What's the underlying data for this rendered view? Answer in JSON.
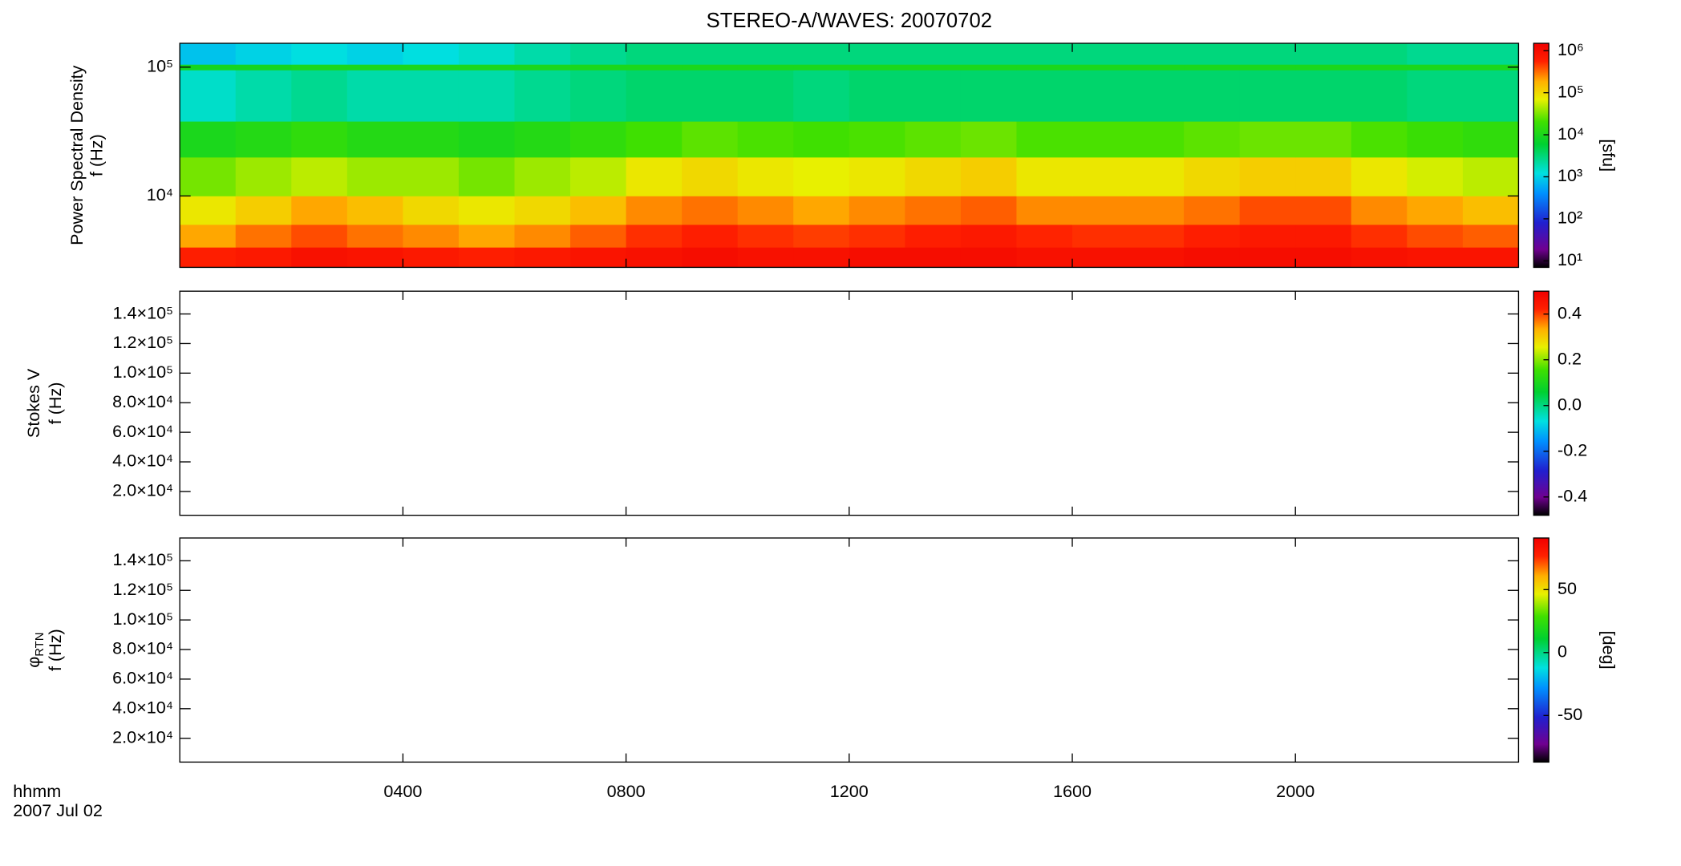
{
  "chart_data": [
    {
      "type": "heatmap",
      "title": "STEREO-A/WAVES: 20070702",
      "ylabel": "Power Spectral Density",
      "ylabel2": "f (Hz)",
      "ylog": true,
      "ylim": [
        2790,
        153000
      ],
      "yticks": [
        {
          "value": 10000,
          "label": "10⁴"
        },
        {
          "value": 100000,
          "label": "10⁵"
        }
      ],
      "xlim": [
        0,
        24
      ],
      "xticks": [
        4,
        8,
        12,
        16,
        20
      ],
      "time_bins": [
        0,
        1,
        2,
        3,
        4,
        5,
        6,
        7,
        8,
        9,
        10,
        11,
        12,
        13,
        14,
        15,
        16,
        17,
        18,
        19,
        20,
        21,
        22,
        23,
        24
      ],
      "freq_bins": [
        2790,
        4000,
        6000,
        10000,
        20000,
        38000,
        95000,
        105000,
        153000
      ],
      "values": [
        [
          600000,
          700000,
          900000,
          800000,
          700000,
          600000,
          700000,
          800000,
          900000,
          1000000,
          900000,
          900000,
          1000000,
          1000000,
          1000000,
          900000,
          900000,
          900000,
          1000000,
          1000000,
          1000000,
          900000,
          800000,
          800000
        ],
        [
          200000,
          300000,
          400000,
          300000,
          250000,
          200000,
          250000,
          350000,
          500000,
          600000,
          500000,
          450000,
          500000,
          600000,
          700000,
          550000,
          500000,
          500000,
          600000,
          700000,
          700000,
          500000,
          400000,
          350000
        ],
        [
          80000,
          120000,
          200000,
          150000,
          100000,
          80000,
          100000,
          150000,
          250000,
          300000,
          250000,
          200000,
          250000,
          300000,
          350000,
          250000,
          250000,
          250000,
          300000,
          400000,
          400000,
          250000,
          200000,
          150000
        ],
        [
          30000,
          40000,
          50000,
          40000,
          40000,
          30000,
          40000,
          50000,
          80000,
          100000,
          80000,
          70000,
          80000,
          100000,
          120000,
          80000,
          80000,
          80000,
          100000,
          120000,
          120000,
          80000,
          60000,
          50000
        ],
        [
          10000,
          12000,
          15000,
          12000,
          12000,
          10000,
          12000,
          15000,
          20000,
          25000,
          22000,
          20000,
          22000,
          25000,
          28000,
          22000,
          22000,
          22000,
          25000,
          28000,
          28000,
          22000,
          18000,
          15000
        ],
        [
          1500,
          2000,
          2500,
          2000,
          2000,
          2000,
          2500,
          3000,
          3500,
          3500,
          3500,
          3000,
          3500,
          3500,
          3500,
          3500,
          3500,
          3500,
          3500,
          3500,
          3500,
          3500,
          3000,
          3000
        ],
        [
          9000,
          9000,
          10000,
          10000,
          10000,
          10000,
          10000,
          10000,
          10000,
          10000,
          10000,
          10000,
          10000,
          10000,
          10000,
          10000,
          10000,
          10000,
          10000,
          10000,
          10000,
          10000,
          10000,
          10000
        ],
        [
          800,
          1000,
          1200,
          1000,
          1200,
          1500,
          2000,
          2500,
          3000,
          3000,
          3000,
          3000,
          3000,
          3000,
          3000,
          3000,
          3000,
          3000,
          3000,
          3000,
          3000,
          3000,
          2500,
          2500
        ]
      ],
      "colormap": "rainbow",
      "clog": true,
      "clim": [
        7,
        1500000
      ],
      "cticks": [
        {
          "value": 10,
          "label": "10¹"
        },
        {
          "value": 100,
          "label": "10²"
        },
        {
          "value": 1000,
          "label": "10³"
        },
        {
          "value": 10000,
          "label": "10⁴"
        },
        {
          "value": 100000,
          "label": "10⁵"
        },
        {
          "value": 1000000,
          "label": "10⁶"
        }
      ],
      "clabel": "[sfu]"
    },
    {
      "type": "heatmap",
      "ylabel": "Stokes V",
      "ylabel2": "f (Hz)",
      "ylim": [
        3900,
        155400
      ],
      "yticks": [
        {
          "value": 20000,
          "label": "2.0×10⁴"
        },
        {
          "value": 40000,
          "label": "4.0×10⁴"
        },
        {
          "value": 60000,
          "label": "6.0×10⁴"
        },
        {
          "value": 80000,
          "label": "8.0×10⁴"
        },
        {
          "value": 100000,
          "label": "1.0×10⁵"
        },
        {
          "value": 120000,
          "label": "1.2×10⁵"
        },
        {
          "value": 140000,
          "label": "1.4×10⁵"
        }
      ],
      "xlim": [
        0,
        24
      ],
      "xticks": [
        4,
        8,
        12,
        16,
        20
      ],
      "colormap": "rainbow",
      "clim": [
        -0.48,
        0.5
      ],
      "cticks": [
        -0.4,
        -0.2,
        {
          "value": 0,
          "label": "0.0"
        },
        0.2,
        0.4
      ]
    },
    {
      "type": "heatmap",
      "ylabel": "φ",
      "ylabel_sub": "RTN",
      "ylabel2": "f (Hz)",
      "ylim": [
        3900,
        155400
      ],
      "yticks": [
        {
          "value": 20000,
          "label": "2.0×10⁴"
        },
        {
          "value": 40000,
          "label": "4.0×10⁴"
        },
        {
          "value": 60000,
          "label": "6.0×10⁴"
        },
        {
          "value": 80000,
          "label": "8.0×10⁴"
        },
        {
          "value": 100000,
          "label": "1.0×10⁵"
        },
        {
          "value": 120000,
          "label": "1.2×10⁵"
        },
        {
          "value": 140000,
          "label": "1.4×10⁵"
        }
      ],
      "xlim": [
        0,
        24
      ],
      "xticks": [
        {
          "value": 4,
          "label": "0400"
        },
        {
          "value": 8,
          "label": "0800"
        },
        {
          "value": 12,
          "label": "1200"
        },
        {
          "value": 16,
          "label": "1600"
        },
        {
          "value": 20,
          "label": "2000"
        }
      ],
      "xlabel": "hhmm",
      "xlabel2": "2007 Jul 02",
      "colormap": "rainbow",
      "clim": [
        -87,
        91
      ],
      "cticks": [
        -50,
        0,
        50
      ],
      "clabel": "[deg]"
    }
  ]
}
